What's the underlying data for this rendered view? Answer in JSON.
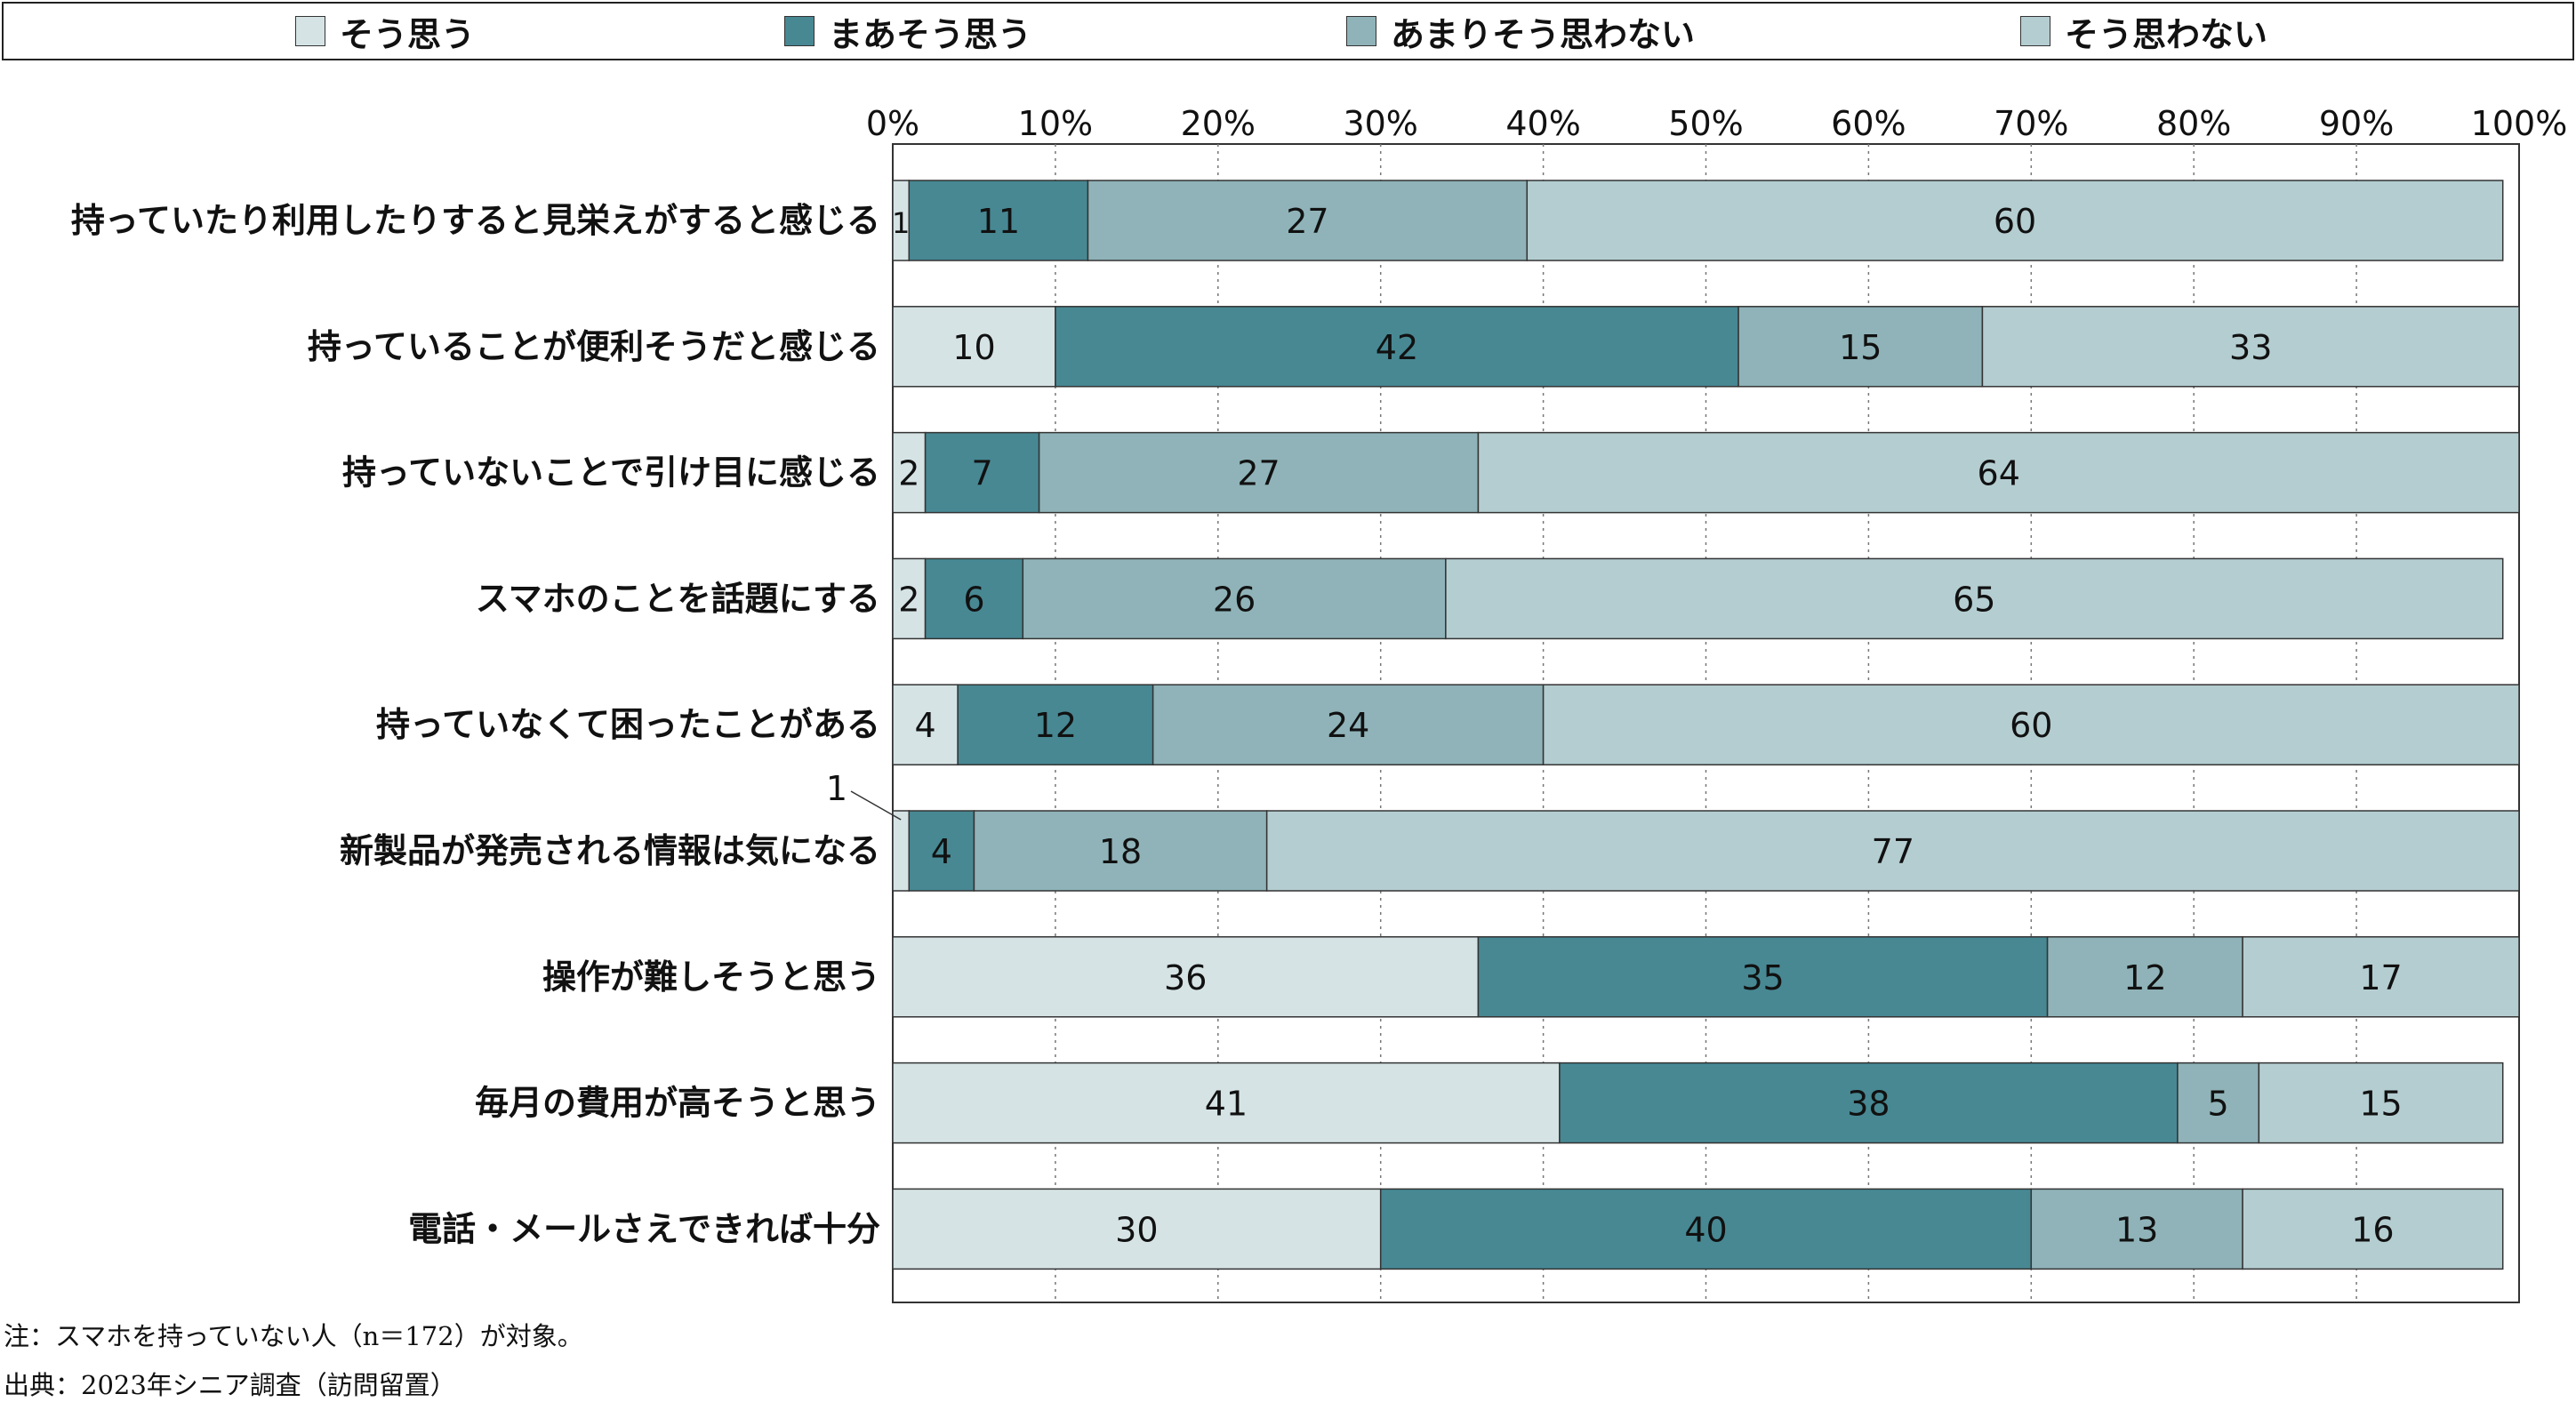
{
  "chart_data": {
    "type": "bar",
    "orientation": "horizontal-stacked-100",
    "categories": [
      "持っていたり利用したりすると見栄えがすると感じる",
      "持っていることが便利そうだと感じる",
      "持っていないことで引け目に感じる",
      "スマホのことを話題にする",
      "持っていなくて困ったことがある",
      "新製品が発売される情報は気になる",
      "操作が難しそうと思う",
      "毎月の費用が高そうと思う",
      "電話・メールさえできれば十分"
    ],
    "series": [
      {
        "name": "そう思う",
        "color": "#d5e3e5",
        "values": [
          1,
          10,
          2,
          2,
          4,
          1,
          36,
          41,
          30
        ]
      },
      {
        "name": "まあそう思う",
        "color": "#478893",
        "values": [
          11,
          42,
          7,
          6,
          12,
          4,
          35,
          38,
          40
        ]
      },
      {
        "name": "あまりそう思わない",
        "color": "#8fb3b8",
        "values": [
          27,
          15,
          27,
          26,
          24,
          18,
          12,
          5,
          13
        ]
      },
      {
        "name": "そう思わない",
        "color": "#b4cdd1",
        "values": [
          60,
          33,
          64,
          65,
          60,
          77,
          17,
          15,
          16
        ]
      }
    ],
    "xlim": [
      0,
      100
    ],
    "x_ticks": [
      "0%",
      "10%",
      "20%",
      "30%",
      "40%",
      "50%",
      "60%",
      "70%",
      "80%",
      "90%",
      "100%"
    ],
    "x_axis_position": "top",
    "grid": "vertical dotted",
    "legend_position": "top",
    "callout": {
      "text": "1",
      "category_index": 5,
      "series_index": 0
    }
  },
  "notes": {
    "note": "注：スマホを持っていない人（n＝172）が対象。",
    "source": "出典：2023年シニア調査（訪問留置）"
  }
}
